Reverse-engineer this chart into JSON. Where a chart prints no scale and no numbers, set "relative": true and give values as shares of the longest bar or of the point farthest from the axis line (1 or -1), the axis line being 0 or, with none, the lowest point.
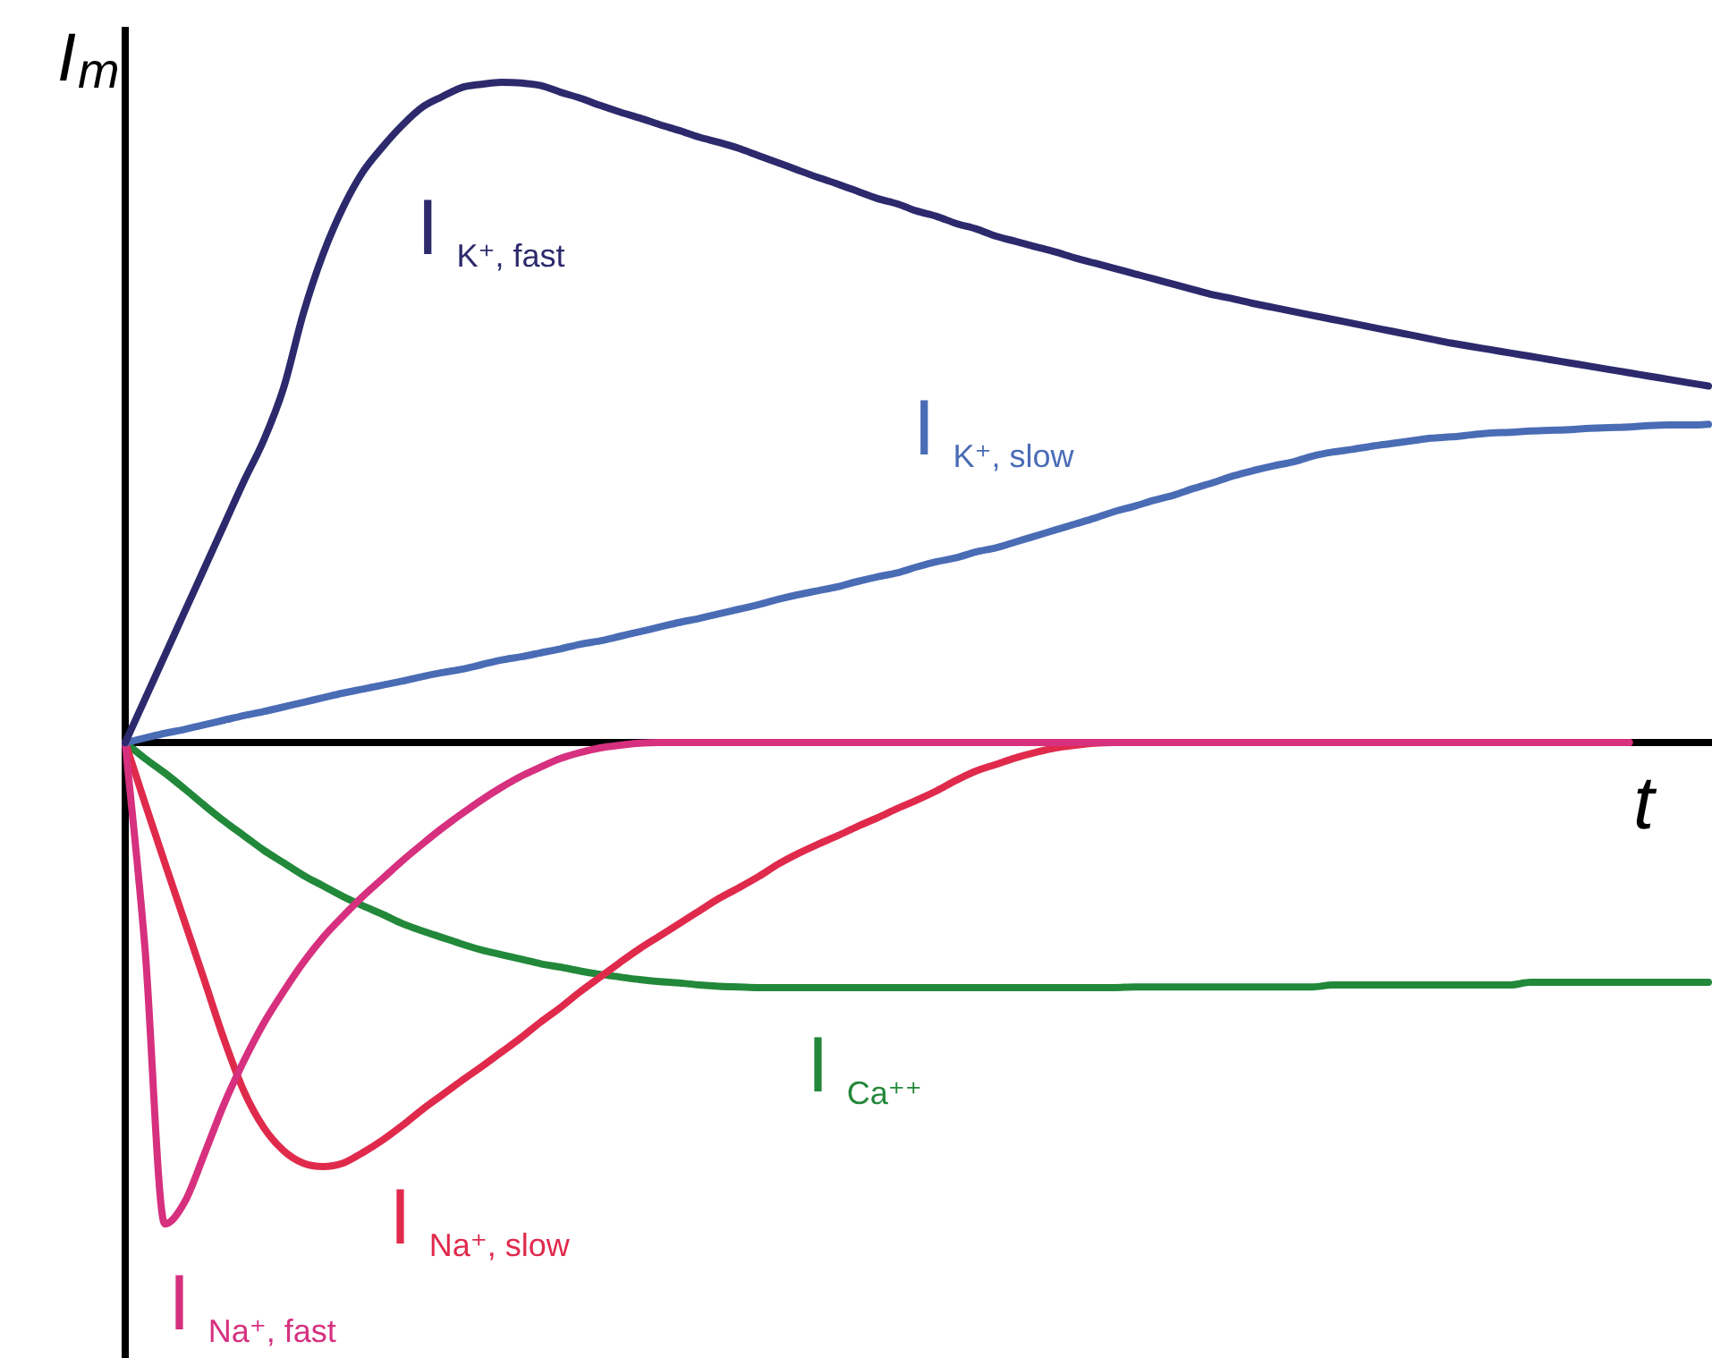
{
  "chart_data": {
    "type": "line",
    "relative": true,
    "xlabel": "t",
    "ylabel": "I$_{m}$",
    "categories": [
      null,
      null,
      null,
      null,
      null,
      null,
      null,
      null,
      null,
      null,
      null,
      null,
      null,
      null,
      null,
      null,
      null,
      null,
      null,
      null,
      null,
      null,
      null,
      null,
      null,
      null,
      null,
      null,
      null,
      null,
      null,
      null,
      null,
      null,
      null,
      null,
      null,
      null,
      null,
      null,
      null,
      null,
      null,
      null,
      null,
      null,
      null,
      null,
      null,
      null,
      null,
      null,
      null,
      null,
      null,
      null,
      null,
      null,
      null,
      null,
      null,
      null,
      null,
      null,
      null,
      null,
      null,
      null,
      null,
      null,
      null,
      null,
      null,
      null,
      null,
      null,
      null,
      null,
      null,
      null,
      null
    ],
    "series": [
      {
        "name": "I$_{K⁺, fast}$",
        "color": "#2c2a6c",
        "values": [
          0,
          0.066,
          0.132,
          0.198,
          0.264,
          0.33,
          0.396,
          0.458,
          0.537,
          0.65,
          0.74,
          0.81,
          0.864,
          0.902,
          0.935,
          0.962,
          0.978,
          0.992,
          0.997,
          1,
          0.999,
          0.995,
          0.985,
          0.976,
          0.965,
          0.955,
          0.946,
          0.936,
          0.927,
          0.917,
          0.909,
          0.9,
          0.889,
          0.878,
          0.867,
          0.856,
          0.846,
          0.835,
          0.824,
          0.816,
          0.805,
          0.797,
          0.786,
          0.778,
          0.767,
          0.759,
          0.751,
          0.743,
          0.734,
          0.726,
          0.718,
          0.71,
          0.702,
          0.694,
          0.686,
          0.678,
          0.672,
          0.665,
          0.659,
          0.653,
          0.647,
          0.641,
          0.635,
          0.629,
          0.623,
          0.617,
          0.611,
          0.605,
          0.6,
          0.595,
          0.59,
          0.585,
          0.58,
          0.575,
          0.57,
          0.565,
          0.56,
          0.555,
          0.55,
          0.545,
          0.54
        ]
      },
      {
        "name": "I$_{K⁺, slow}$",
        "color": "#4a6cb5",
        "values": [
          0,
          0.007,
          0.014,
          0.02,
          0.027,
          0.034,
          0.041,
          0.047,
          0.054,
          0.061,
          0.068,
          0.075,
          0.081,
          0.087,
          0.093,
          0.1,
          0.106,
          0.111,
          0.118,
          0.125,
          0.13,
          0.136,
          0.142,
          0.149,
          0.154,
          0.161,
          0.168,
          0.175,
          0.182,
          0.188,
          0.195,
          0.202,
          0.209,
          0.217,
          0.224,
          0.23,
          0.236,
          0.244,
          0.251,
          0.257,
          0.266,
          0.274,
          0.28,
          0.289,
          0.295,
          0.304,
          0.313,
          0.322,
          0.331,
          0.34,
          0.35,
          0.358,
          0.367,
          0.375,
          0.385,
          0.394,
          0.404,
          0.412,
          0.419,
          0.425,
          0.434,
          0.44,
          0.444,
          0.449,
          0.453,
          0.457,
          0.461,
          0.463,
          0.466,
          0.469,
          0.47,
          0.472,
          0.473,
          0.474,
          0.476,
          0.477,
          0.478,
          0.48,
          0.481,
          0.481,
          0.482
        ]
      },
      {
        "name": "I$_{Na⁺, fast}$",
        "color": "#d6307f",
        "values": [
          0,
          -0.312,
          -0.729,
          -0.696,
          -0.623,
          -0.547,
          -0.482,
          -0.425,
          -0.377,
          -0.333,
          -0.295,
          -0.263,
          -0.233,
          -0.206,
          -0.179,
          -0.154,
          -0.13,
          -0.108,
          -0.087,
          -0.068,
          -0.051,
          -0.037,
          -0.024,
          -0.015,
          -0.008,
          -0.004,
          -0.001,
          0,
          0,
          0,
          0,
          0,
          0,
          0,
          0,
          0,
          0,
          0,
          0,
          0,
          0,
          0,
          0,
          0,
          0,
          0,
          0,
          0,
          0,
          0,
          0,
          0,
          0,
          0,
          0,
          0,
          0,
          0,
          0,
          0,
          0,
          0,
          0,
          0,
          0,
          0,
          0,
          0,
          0,
          0,
          0,
          0,
          0,
          0,
          0,
          0,
          0,
          null,
          null,
          null,
          null
        ]
      },
      {
        "name": "I$_{Na⁺, slow}$",
        "color": "#e02a4c",
        "values": [
          0,
          -0.092,
          -0.182,
          -0.271,
          -0.36,
          -0.45,
          -0.528,
          -0.583,
          -0.618,
          -0.637,
          -0.642,
          -0.637,
          -0.621,
          -0.602,
          -0.58,
          -0.556,
          -0.534,
          -0.512,
          -0.491,
          -0.469,
          -0.447,
          -0.423,
          -0.401,
          -0.377,
          -0.355,
          -0.333,
          -0.312,
          -0.293,
          -0.274,
          -0.255,
          -0.236,
          -0.22,
          -0.203,
          -0.184,
          -0.168,
          -0.154,
          -0.141,
          -0.127,
          -0.114,
          -0.1,
          -0.087,
          -0.073,
          -0.057,
          -0.043,
          -0.033,
          -0.023,
          -0.015,
          -0.008,
          -0.004,
          -0.001,
          0,
          0,
          0,
          0,
          0,
          0,
          0,
          0,
          0,
          0,
          0,
          0,
          0,
          0,
          0,
          0,
          0,
          0,
          0,
          0,
          0,
          0,
          0,
          0,
          0,
          0,
          0,
          null,
          null,
          null,
          null
        ]
      },
      {
        "name": "I$_{Ca⁺⁺}$",
        "color": "#22883a",
        "values": [
          0,
          -0.024,
          -0.046,
          -0.07,
          -0.095,
          -0.119,
          -0.141,
          -0.163,
          -0.182,
          -0.201,
          -0.217,
          -0.233,
          -0.247,
          -0.26,
          -0.274,
          -0.285,
          -0.295,
          -0.305,
          -0.314,
          -0.321,
          -0.328,
          -0.335,
          -0.34,
          -0.346,
          -0.351,
          -0.355,
          -0.359,
          -0.362,
          -0.364,
          -0.367,
          -0.369,
          -0.37,
          -0.371,
          -0.371,
          -0.371,
          -0.371,
          -0.371,
          -0.371,
          -0.371,
          -0.371,
          -0.371,
          -0.371,
          -0.371,
          -0.371,
          -0.371,
          -0.371,
          -0.371,
          -0.371,
          -0.371,
          -0.371,
          -0.371,
          -0.37,
          -0.37,
          -0.37,
          -0.37,
          -0.37,
          -0.37,
          -0.37,
          -0.37,
          -0.37,
          -0.37,
          -0.367,
          -0.367,
          -0.367,
          -0.367,
          -0.367,
          -0.367,
          -0.367,
          -0.367,
          -0.367,
          -0.367,
          -0.363,
          -0.363,
          -0.363,
          -0.363,
          -0.363,
          -0.363,
          -0.363,
          -0.363,
          -0.363,
          -0.363
        ]
      }
    ]
  }
}
